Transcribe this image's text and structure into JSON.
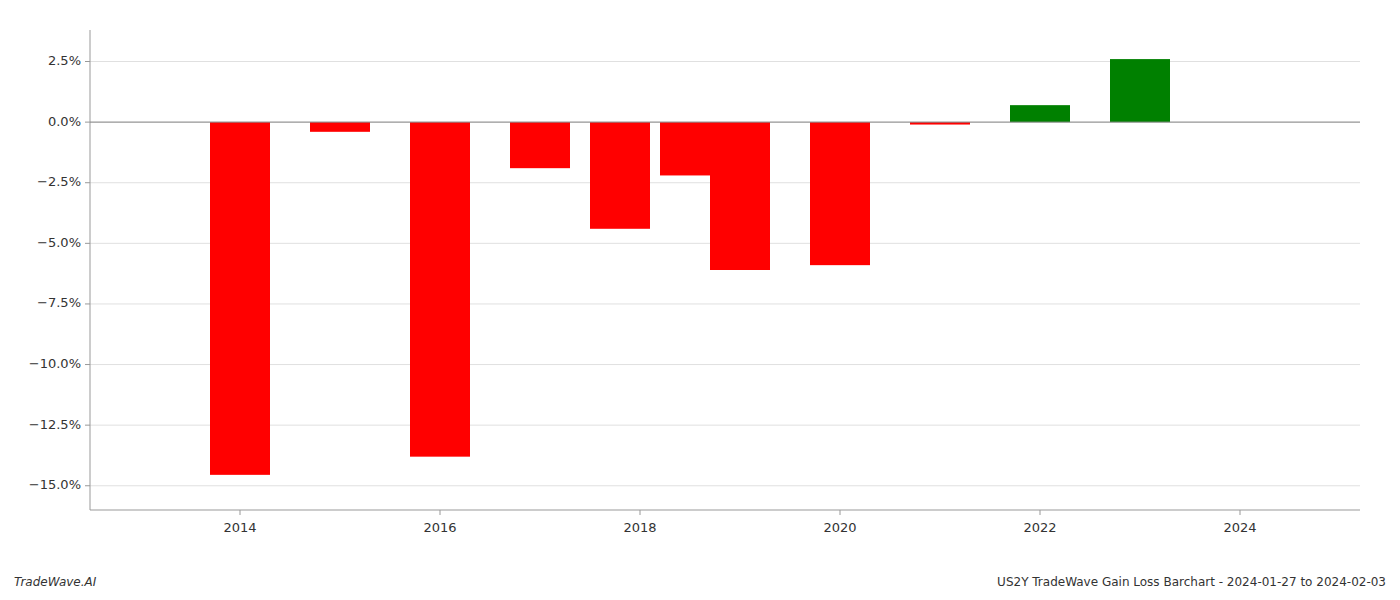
{
  "chart_data": {
    "type": "bar",
    "title": "US2Y TradeWave Gain Loss Barchart - 2024-01-27 to 2024-02-03",
    "annotations": [
      "TradeWave.AI"
    ],
    "x": [
      2014,
      2015,
      2016,
      2017,
      2017.8,
      2018.5,
      2019,
      2020,
      2021,
      2022,
      2023
    ],
    "values": [
      -0.1455,
      -0.004,
      -0.138,
      -0.019,
      -0.044,
      -0.022,
      -0.061,
      -0.059,
      -0.001,
      0.007,
      0.026
    ],
    "colors": [
      "#ff0000",
      "#ff0000",
      "#ff0000",
      "#ff0000",
      "#ff0000",
      "#ff0000",
      "#ff0000",
      "#ff0000",
      "#ff0000",
      "#008000",
      "#008000"
    ],
    "xlim": [
      2012.5,
      2025.2
    ],
    "ylim": [
      -0.16,
      0.038
    ],
    "xticks": [
      2014,
      2016,
      2018,
      2020,
      2022,
      2024
    ],
    "yticks": [
      {
        "value": -0.15,
        "label": "−15.0%"
      },
      {
        "value": -0.125,
        "label": "−12.5%"
      },
      {
        "value": -0.1,
        "label": "−10.0%"
      },
      {
        "value": -0.075,
        "label": "−7.5%"
      },
      {
        "value": -0.05,
        "label": "−5.0%"
      },
      {
        "value": -0.025,
        "label": "−2.5%"
      },
      {
        "value": 0.0,
        "label": "0.0%"
      },
      {
        "value": 0.025,
        "label": "2.5%"
      }
    ],
    "grid": true
  }
}
